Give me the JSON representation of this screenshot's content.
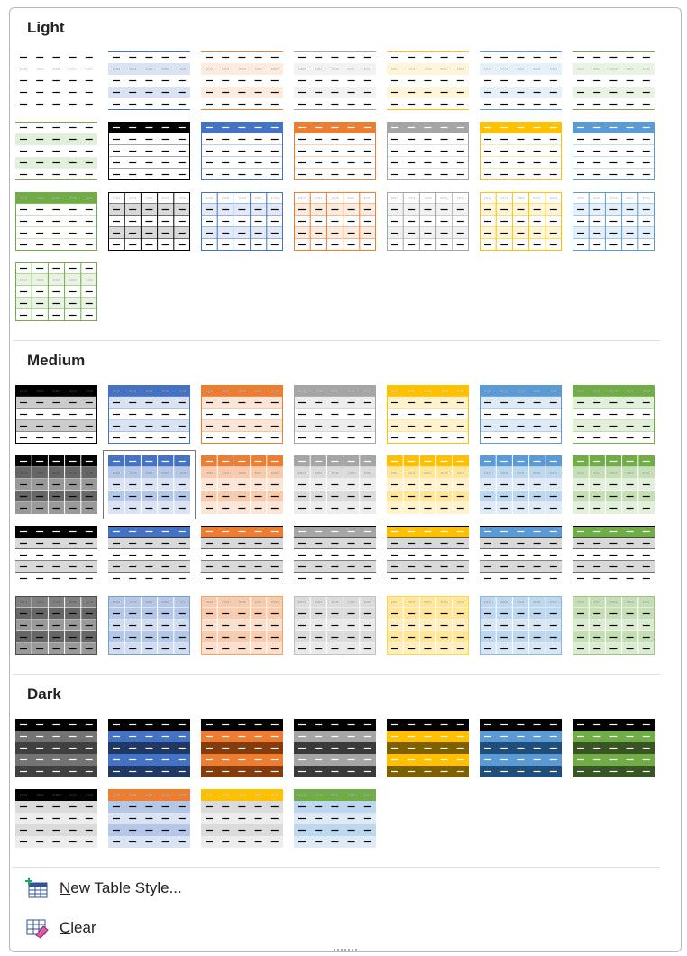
{
  "sections": [
    {
      "title": "Light"
    },
    {
      "title": "Medium"
    },
    {
      "title": "Dark"
    }
  ],
  "menu": [
    {
      "label": "New Table Style..."
    },
    {
      "label": "Clear"
    }
  ]
}
